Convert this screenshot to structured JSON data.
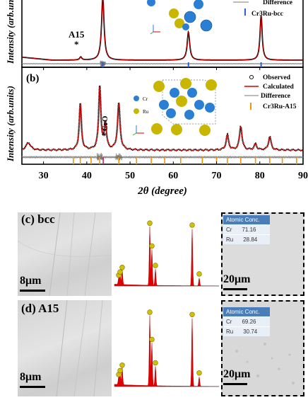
{
  "chart_data": [
    {
      "type": "line",
      "panel": "(a)",
      "ylabel": "Intensity (arb.units)",
      "legend": [
        "Difference",
        "Cr3Ru-bcc"
      ],
      "annotations": [
        "A15",
        "*"
      ],
      "peaks_bcc_2theta": [
        43.7,
        63.5,
        80.3
      ]
    },
    {
      "type": "line",
      "panel": "(b)",
      "xlabel": "2θ (degree)",
      "ylabel": "Intensity (arb.units)",
      "xlim": [
        25,
        90
      ],
      "x_ticks": [
        "30",
        "40",
        "50",
        "60",
        "70",
        "80",
        "90"
      ],
      "legend": [
        "Observed",
        "Calculated",
        "Difference",
        "Cr3Ru-A15"
      ],
      "atoms": [
        "Cr",
        "Ru"
      ],
      "annotations": [
        "CrO",
        "*"
      ],
      "peaks_a15_2theta": [
        38.5,
        43.0,
        47.4,
        72.5,
        75.6,
        79.0,
        82.3
      ]
    }
  ],
  "panel_c": {
    "label": "(c) bcc",
    "scale_left": "8μm",
    "scale_right": "20μm",
    "table_header": "Atomic Conc.",
    "rows": [
      {
        "el": "Cr",
        "val": "71.16"
      },
      {
        "el": "Ru",
        "val": "28.84"
      }
    ]
  },
  "panel_d": {
    "label": "(d) A15",
    "scale_left": "8μm",
    "scale_right": "20μm",
    "table_header": "Atomic Conc.",
    "rows": [
      {
        "el": "Cr",
        "val": "69.26"
      },
      {
        "el": "Ru",
        "val": "30.74"
      }
    ]
  },
  "colors": {
    "observed": "#000000",
    "calculated": "#d40000",
    "difference": "#777777",
    "bcc_tick": "#2e5bd6",
    "a15_tick": "#f29500",
    "cr_atom": "#2a7fd4",
    "ru_atom": "#c8b600"
  }
}
